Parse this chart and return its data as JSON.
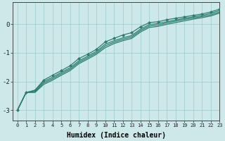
{
  "x": [
    0,
    1,
    2,
    3,
    4,
    5,
    6,
    7,
    8,
    9,
    10,
    11,
    12,
    13,
    14,
    15,
    16,
    17,
    18,
    19,
    20,
    21,
    22,
    23
  ],
  "line1": [
    -3.0,
    -2.38,
    -2.3,
    -1.95,
    -1.78,
    -1.62,
    -1.45,
    -1.2,
    -1.05,
    -0.88,
    -0.62,
    -0.5,
    -0.38,
    -0.3,
    -0.1,
    0.05,
    0.08,
    0.15,
    0.2,
    0.25,
    0.3,
    0.35,
    0.42,
    0.52
  ],
  "line2": [
    -3.0,
    -2.38,
    -2.32,
    -2.0,
    -1.85,
    -1.68,
    -1.52,
    -1.28,
    -1.12,
    -0.95,
    -0.7,
    -0.58,
    -0.48,
    -0.4,
    -0.18,
    -0.02,
    0.02,
    0.08,
    0.14,
    0.2,
    0.25,
    0.3,
    0.37,
    0.47
  ],
  "line3": [
    -3.0,
    -2.38,
    -2.35,
    -2.05,
    -1.9,
    -1.73,
    -1.57,
    -1.33,
    -1.17,
    -1.0,
    -0.76,
    -0.63,
    -0.53,
    -0.45,
    -0.23,
    -0.07,
    -0.03,
    0.04,
    0.1,
    0.16,
    0.21,
    0.26,
    0.32,
    0.42
  ],
  "line4": [
    -3.0,
    -2.38,
    -2.38,
    -2.1,
    -1.95,
    -1.78,
    -1.62,
    -1.38,
    -1.22,
    -1.05,
    -0.82,
    -0.68,
    -0.58,
    -0.5,
    -0.28,
    -0.12,
    -0.08,
    -0.01,
    0.05,
    0.11,
    0.17,
    0.22,
    0.28,
    0.38
  ],
  "line_color": "#2e7d6e",
  "bg_color": "#cce8e8",
  "grid_color": "#99cccc",
  "xlabel": "Humidex (Indice chaleur)",
  "xlim": [
    -0.5,
    23
  ],
  "ylim": [
    -3.35,
    0.75
  ],
  "yticks": [
    0,
    -1,
    -2,
    -3
  ],
  "xticks": [
    0,
    1,
    2,
    3,
    4,
    5,
    6,
    7,
    8,
    9,
    10,
    11,
    12,
    13,
    14,
    15,
    16,
    17,
    18,
    19,
    20,
    21,
    22,
    23
  ],
  "marker": "D",
  "markersize": 2.0,
  "linewidth": 0.9
}
